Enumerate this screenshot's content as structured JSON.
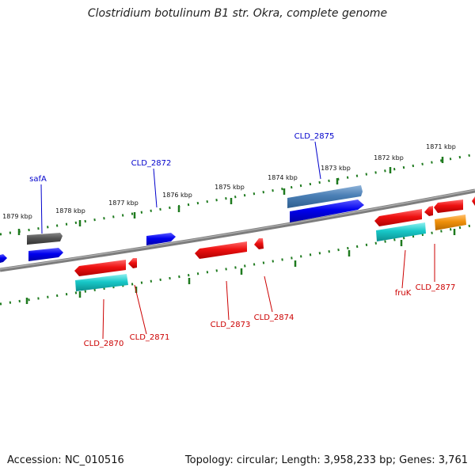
{
  "title": "Clostridium botulinum B1 str. Okra, complete genome",
  "footer": {
    "accession": "Accession: NC_010516",
    "summary": "Topology: circular; Length: 3,958,233 bp; Genes: 3,761"
  },
  "scale_labels": [
    "1879 kbp",
    "1878 kbp",
    "1877 kbp",
    "1876 kbp",
    "1875 kbp",
    "1874 kbp",
    "1873 kbp",
    "1872 kbp",
    "1871 kbp"
  ],
  "genes": [
    {
      "label": "safA",
      "color": "#0000cc"
    },
    {
      "label": "CLD_2872",
      "color": "#0000cc"
    },
    {
      "label": "CLD_2875",
      "color": "#0000cc"
    },
    {
      "label": "CLD_2870",
      "color": "#cc0000"
    },
    {
      "label": "CLD_2871",
      "color": "#cc0000"
    },
    {
      "label": "CLD_2873",
      "color": "#cc0000"
    },
    {
      "label": "CLD_2874",
      "color": "#cc0000"
    },
    {
      "label": "fruK",
      "color": "#cc0000"
    },
    {
      "label": "CLD_2877",
      "color": "#cc0000"
    }
  ],
  "colors": {
    "backbone": "#808080",
    "tick": "#1e7a1e",
    "cds_forward": "#0000ee",
    "cds_reverse": "#ee1111",
    "gene_gray": "#555555",
    "rna_steelblue": "#4a7fb5",
    "cyan": "#18c8c8",
    "orange": "#f0900a"
  }
}
